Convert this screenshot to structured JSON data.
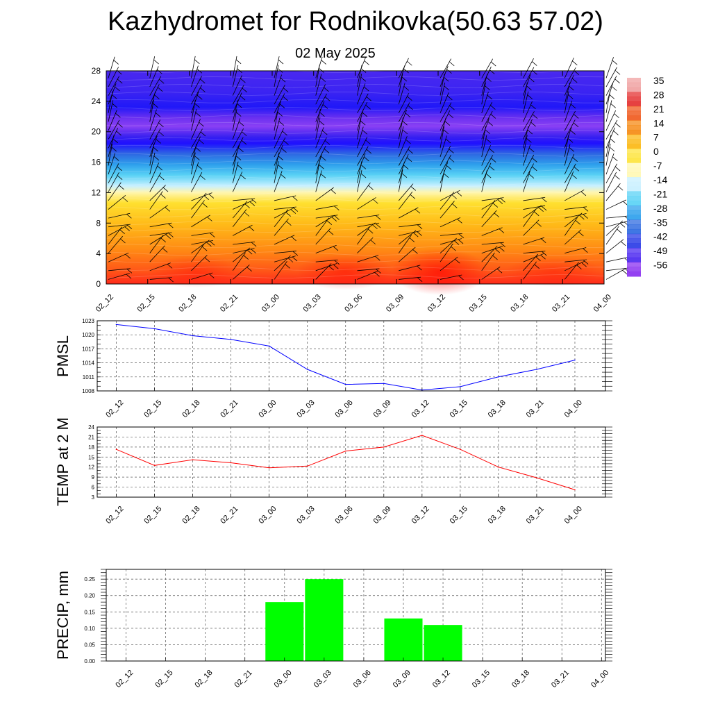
{
  "title": "Kazhydromet for Rodnikovka(50.63 57.02)",
  "subtitle": "02 May 2025",
  "x_ticks": [
    "02_12",
    "02_15",
    "02_18",
    "02_21",
    "03_00",
    "03_03",
    "03_06",
    "03_09",
    "03_12",
    "03_15",
    "03_18",
    "03_21",
    "04_00"
  ],
  "colorbar": {
    "labels": [
      "35",
      "28",
      "21",
      "14",
      "7",
      "0",
      "-7",
      "-14",
      "-21",
      "-28",
      "-35",
      "-42",
      "-49",
      "-56"
    ],
    "colors": [
      "#f0a0a0",
      "#e43030",
      "#f05a1e",
      "#f58a14",
      "#fcb814",
      "#fde43c",
      "#fff8b4",
      "#c8f0ff",
      "#5ad2f5",
      "#2ea0ec",
      "#2f6be0",
      "#2a3ce6",
      "#4b28f0",
      "#8a30f0"
    ]
  },
  "chart_data": [
    {
      "type": "heatmap",
      "title": "",
      "xlabel": "",
      "ylabel": "",
      "x": [
        "02_12",
        "02_15",
        "02_18",
        "02_21",
        "03_00",
        "03_03",
        "03_06",
        "03_09",
        "03_12",
        "03_15",
        "03_18",
        "03_21",
        "04_00"
      ],
      "y_ticks": [
        0,
        4,
        8,
        12,
        16,
        20,
        24,
        28
      ],
      "ylim": [
        0,
        28
      ],
      "colorbar_range": [
        -56,
        35
      ],
      "levels": [
        0,
        4,
        8,
        12,
        16,
        20,
        24,
        28
      ],
      "values_by_level": [
        [
          22,
          20,
          19,
          22,
          24,
          20,
          22,
          24,
          26,
          25,
          24,
          24,
          23
        ],
        [
          15,
          14,
          14,
          15,
          16,
          15,
          16,
          17,
          17,
          17,
          16,
          16,
          15
        ],
        [
          6,
          6,
          6,
          7,
          8,
          8,
          8,
          8,
          9,
          9,
          8,
          8,
          7
        ],
        [
          -8,
          -8,
          -8,
          -8,
          -7,
          -7,
          -7,
          -7,
          -7,
          -7,
          -7,
          -7,
          -7
        ],
        [
          -40,
          -40,
          -40,
          -40,
          -40,
          -40,
          -40,
          -40,
          -40,
          -40,
          -40,
          -40,
          -40
        ],
        [
          -54,
          -56,
          -55,
          -55,
          -56,
          -57,
          -57,
          -57,
          -57,
          -54,
          -53,
          -53,
          -53
        ],
        [
          -50,
          -50,
          -50,
          -50,
          -50,
          -50,
          -52,
          -52,
          -52,
          -53,
          -53,
          -53,
          -53
        ],
        [
          -52,
          -53,
          -52,
          -52,
          -52,
          -52,
          -52,
          -52,
          -52,
          -52,
          -52,
          -52,
          -52
        ]
      ],
      "wind_barbs": true
    },
    {
      "type": "line",
      "ylabel": "PMSL",
      "series": [
        {
          "values": [
            1022.2,
            1021.3,
            1019.8,
            1019.0,
            1017.6,
            1012.6,
            1009.4,
            1009.6,
            1008.2,
            1008.9,
            1011.0,
            1012.6,
            1014.6
          ],
          "color": "#0000ff"
        }
      ],
      "x": [
        "02_12",
        "02_15",
        "02_18",
        "02_21",
        "03_00",
        "03_03",
        "03_06",
        "03_09",
        "03_12",
        "03_15",
        "03_18",
        "03_21",
        "04_00"
      ],
      "yticks": [
        1008,
        1011,
        1014,
        1017,
        1020,
        1023
      ],
      "ylim": [
        1008,
        1023
      ],
      "grid": true
    },
    {
      "type": "line",
      "ylabel": "TEMP at 2 M",
      "series": [
        {
          "values": [
            17.3,
            12.5,
            14.2,
            13.3,
            11.8,
            12.3,
            16.8,
            18.0,
            21.5,
            17.3,
            12.0,
            8.8,
            5.2
          ],
          "color": "#ff0000"
        }
      ],
      "x": [
        "02_12",
        "02_15",
        "02_18",
        "02_21",
        "03_00",
        "03_03",
        "03_06",
        "03_09",
        "03_12",
        "03_15",
        "03_18",
        "03_21",
        "04_00"
      ],
      "yticks": [
        3,
        6,
        9,
        12,
        15,
        18,
        21,
        24
      ],
      "ylim": [
        3,
        24
      ],
      "grid": true
    },
    {
      "type": "bar",
      "ylabel": "PRECIP, mm",
      "categories": [
        "02_12",
        "02_15",
        "02_18",
        "02_21",
        "03_00",
        "03_03",
        "03_06",
        "03_09",
        "03_12",
        "03_15",
        "03_18",
        "03_21",
        "04_00"
      ],
      "values": [
        0,
        0,
        0,
        0,
        0.18,
        0.25,
        0,
        0.13,
        0.11,
        0,
        0,
        0,
        0
      ],
      "bar_color": "#00ff00",
      "yticks": [
        "0.00",
        "0.05",
        "0.10",
        "0.15",
        "0.20",
        "0.25"
      ],
      "ylim": [
        0,
        0.28
      ],
      "grid": true
    }
  ]
}
